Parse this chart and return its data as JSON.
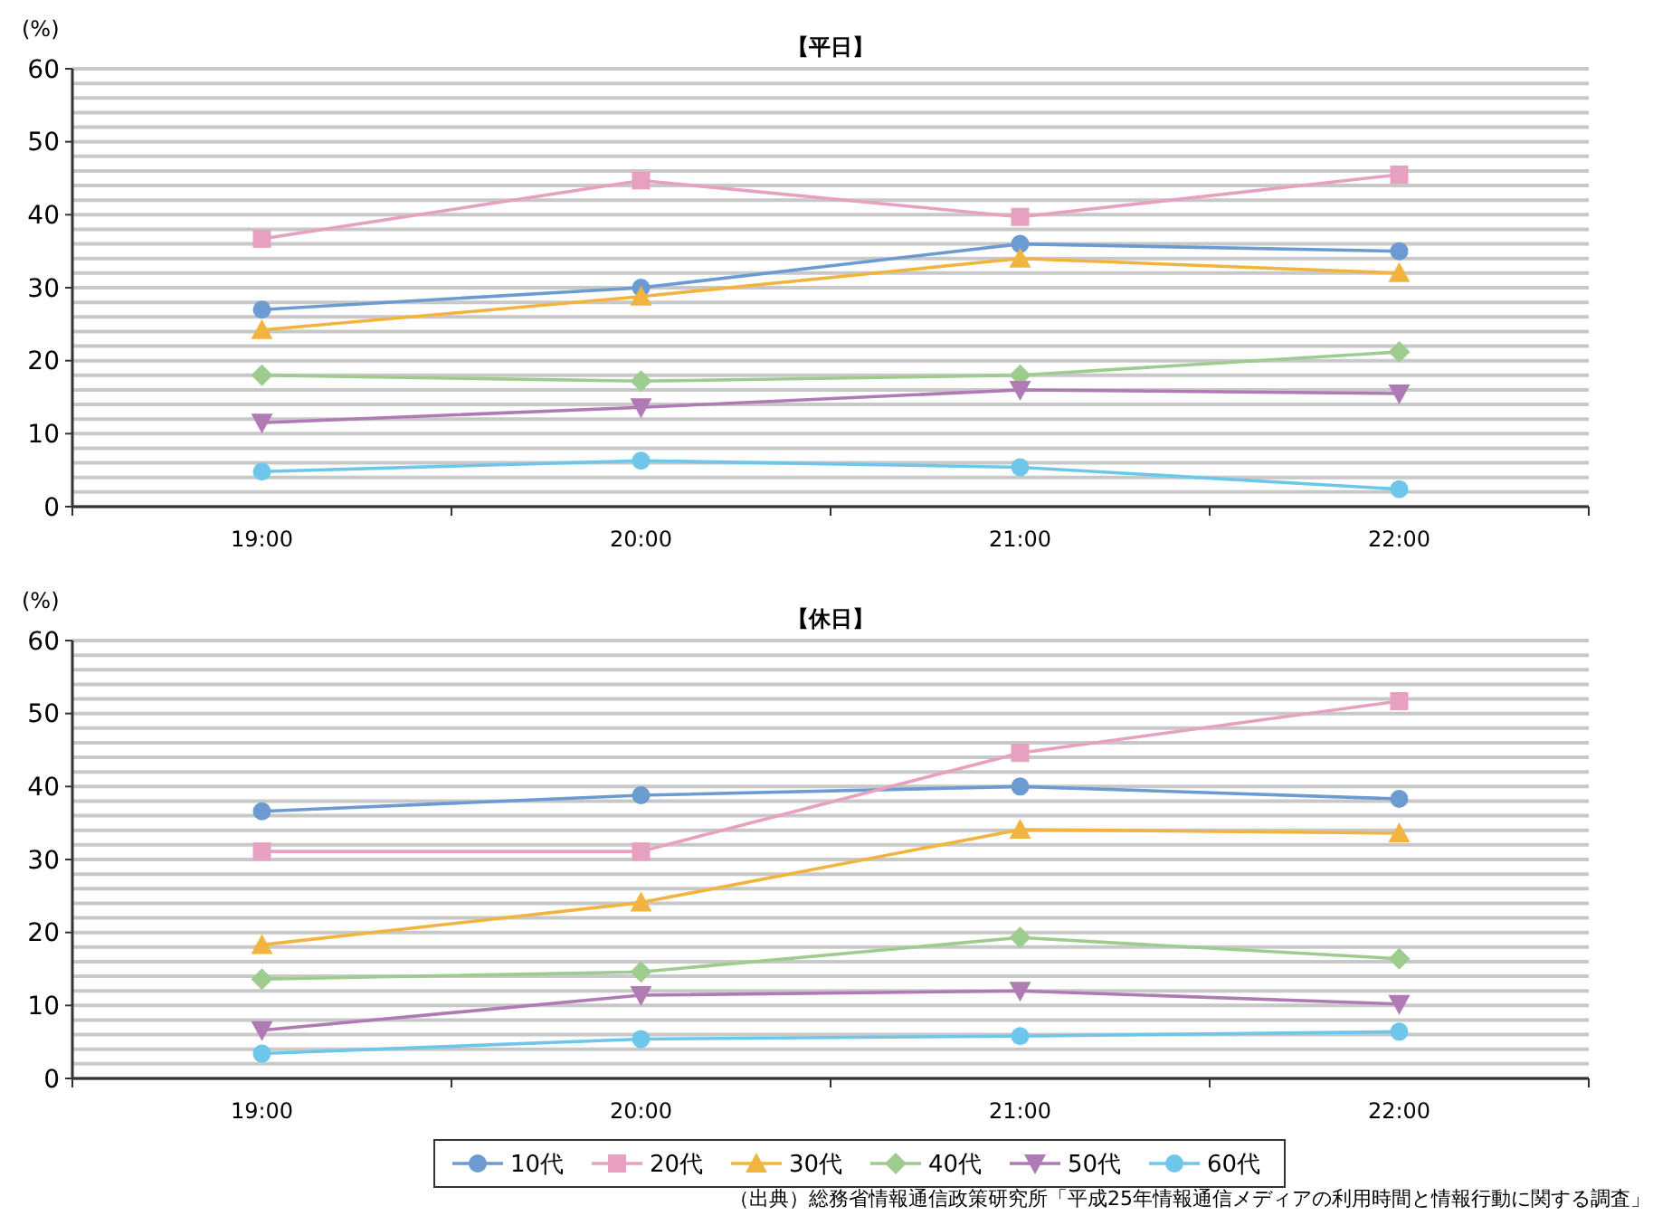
{
  "chart_data": [
    {
      "type": "line",
      "title": "【平日】",
      "ylabel": "(%)",
      "categories": [
        "19:00",
        "20:00",
        "21:00",
        "22:00"
      ],
      "ylim": [
        0,
        60
      ],
      "yticks": [
        0,
        {
          "value": 2,
          "label": null
        },
        {
          "value": 4,
          "label": null
        },
        {
          "value": 6,
          "label": null
        },
        {
          "value": 8,
          "label": null
        },
        10,
        {
          "value": 12,
          "label": null
        },
        {
          "value": 14,
          "label": null
        },
        {
          "value": 16,
          "label": null
        },
        {
          "value": 18,
          "label": null
        },
        20,
        {
          "value": 22,
          "label": null
        },
        {
          "value": 24,
          "label": null
        },
        {
          "value": 26,
          "label": null
        },
        {
          "value": 28,
          "label": null
        },
        30,
        {
          "value": 32,
          "label": null
        },
        {
          "value": 34,
          "label": null
        },
        {
          "value": 36,
          "label": null
        },
        {
          "value": 38,
          "label": null
        },
        40,
        {
          "value": 42,
          "label": null
        },
        {
          "value": 44,
          "label": null
        },
        {
          "value": 46,
          "label": null
        },
        {
          "value": 48,
          "label": null
        },
        50,
        {
          "value": 52,
          "label": null
        },
        {
          "value": 54,
          "label": null
        },
        {
          "value": 56,
          "label": null
        },
        {
          "value": 58,
          "label": null
        },
        60
      ],
      "grid": "y",
      "legend": false,
      "series": [
        {
          "color": "#6b9bd1",
          "marker": "circle",
          "values": [
            27,
            30,
            36,
            35
          ]
        },
        {
          "color": "#e8a0c0",
          "marker": "square",
          "values": [
            36.7,
            44.7,
            39.7,
            45.5
          ]
        },
        {
          "color": "#f2b440",
          "marker": "triangle",
          "values": [
            24.2,
            28.8,
            34,
            32
          ]
        },
        {
          "color": "#9dcc8e",
          "marker": "diamond",
          "values": [
            18,
            17.2,
            18,
            21.2
          ]
        },
        {
          "color": "#b07ab5",
          "marker": "triangle-down",
          "values": [
            11.5,
            13.6,
            16,
            15.5
          ]
        },
        {
          "color": "#6ec6ea",
          "marker": "circle",
          "values": [
            4.8,
            6.3,
            5.4,
            2.4
          ]
        }
      ]
    },
    {
      "type": "line",
      "title": "【休日】",
      "ylabel": "(%)",
      "categories": [
        "19:00",
        "20:00",
        "21:00",
        "22:00"
      ],
      "ylim": [
        0,
        60
      ],
      "yticks": [
        0,
        {
          "value": 2,
          "label": null
        },
        {
          "value": 4,
          "label": null
        },
        {
          "value": 6,
          "label": null
        },
        {
          "value": 8,
          "label": null
        },
        10,
        {
          "value": 12,
          "label": null
        },
        {
          "value": 14,
          "label": null
        },
        {
          "value": 16,
          "label": null
        },
        {
          "value": 18,
          "label": null
        },
        20,
        {
          "value": 22,
          "label": null
        },
        {
          "value": 24,
          "label": null
        },
        {
          "value": 26,
          "label": null
        },
        {
          "value": 28,
          "label": null
        },
        30,
        {
          "value": 32,
          "label": null
        },
        {
          "value": 34,
          "label": null
        },
        {
          "value": 36,
          "label": null
        },
        {
          "value": 38,
          "label": null
        },
        40,
        {
          "value": 42,
          "label": null
        },
        {
          "value": 44,
          "label": null
        },
        {
          "value": 46,
          "label": null
        },
        {
          "value": 48,
          "label": null
        },
        50,
        {
          "value": 52,
          "label": null
        },
        {
          "value": 54,
          "label": null
        },
        {
          "value": 56,
          "label": null
        },
        {
          "value": 58,
          "label": null
        },
        60
      ],
      "grid": "y",
      "legend": "bottom",
      "annotations": [
        "（出典）総務省情報通信政策研究所「平成25年情報通信メディアの利用時間と情報行動に関する調査」"
      ],
      "series": [
        {
          "name": "10代",
          "color": "#6b9bd1",
          "marker": "circle",
          "values": [
            36.6,
            38.8,
            40,
            38.3
          ]
        },
        {
          "name": "20代",
          "color": "#e8a0c0",
          "marker": "square",
          "values": [
            31.1,
            31.1,
            44.6,
            51.7
          ]
        },
        {
          "name": "30代",
          "color": "#f2b440",
          "marker": "triangle",
          "values": [
            18.3,
            24.1,
            34.1,
            33.6
          ]
        },
        {
          "name": "40代",
          "color": "#9dcc8e",
          "marker": "diamond",
          "values": [
            13.6,
            14.6,
            19.3,
            16.4
          ]
        },
        {
          "name": "50代",
          "color": "#b07ab5",
          "marker": "triangle-down",
          "values": [
            6.6,
            11.4,
            12,
            10.2
          ]
        },
        {
          "name": "60代",
          "color": "#6ec6ea",
          "marker": "circle",
          "values": [
            3.4,
            5.4,
            5.8,
            6.4
          ]
        }
      ]
    }
  ]
}
